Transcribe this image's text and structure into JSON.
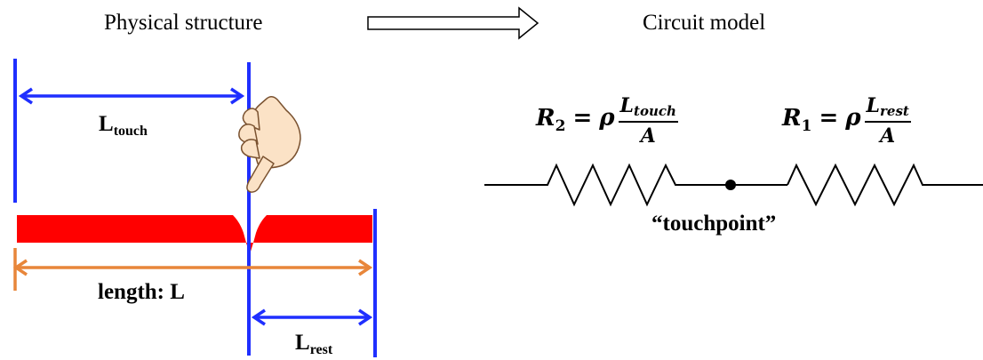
{
  "headings": {
    "physical": "Physical structure",
    "circuit": "Circuit model"
  },
  "labels": {
    "l_touch_main": "L",
    "l_touch_sub": "touch",
    "length": "length: L",
    "l_rest_main": "L",
    "l_rest_sub": "rest",
    "touchpoint": "“touchpoint”"
  },
  "equations": {
    "r2": {
      "symbol": "R",
      "subscript": "2",
      "equals": "=",
      "rho": "ρ",
      "num_main": "L",
      "num_sub": "touch",
      "den": "A"
    },
    "r1": {
      "symbol": "R",
      "subscript": "1",
      "equals": "=",
      "rho": "ρ",
      "num_main": "L",
      "num_sub": "rest",
      "den": "A"
    }
  },
  "colors": {
    "blue": "#1f2fff",
    "red": "#ff0000",
    "orange": "#e8863a",
    "black": "#000000"
  },
  "icons": {
    "arrow": "right-arrow-outline",
    "hand": "pointing-hand-icon"
  }
}
